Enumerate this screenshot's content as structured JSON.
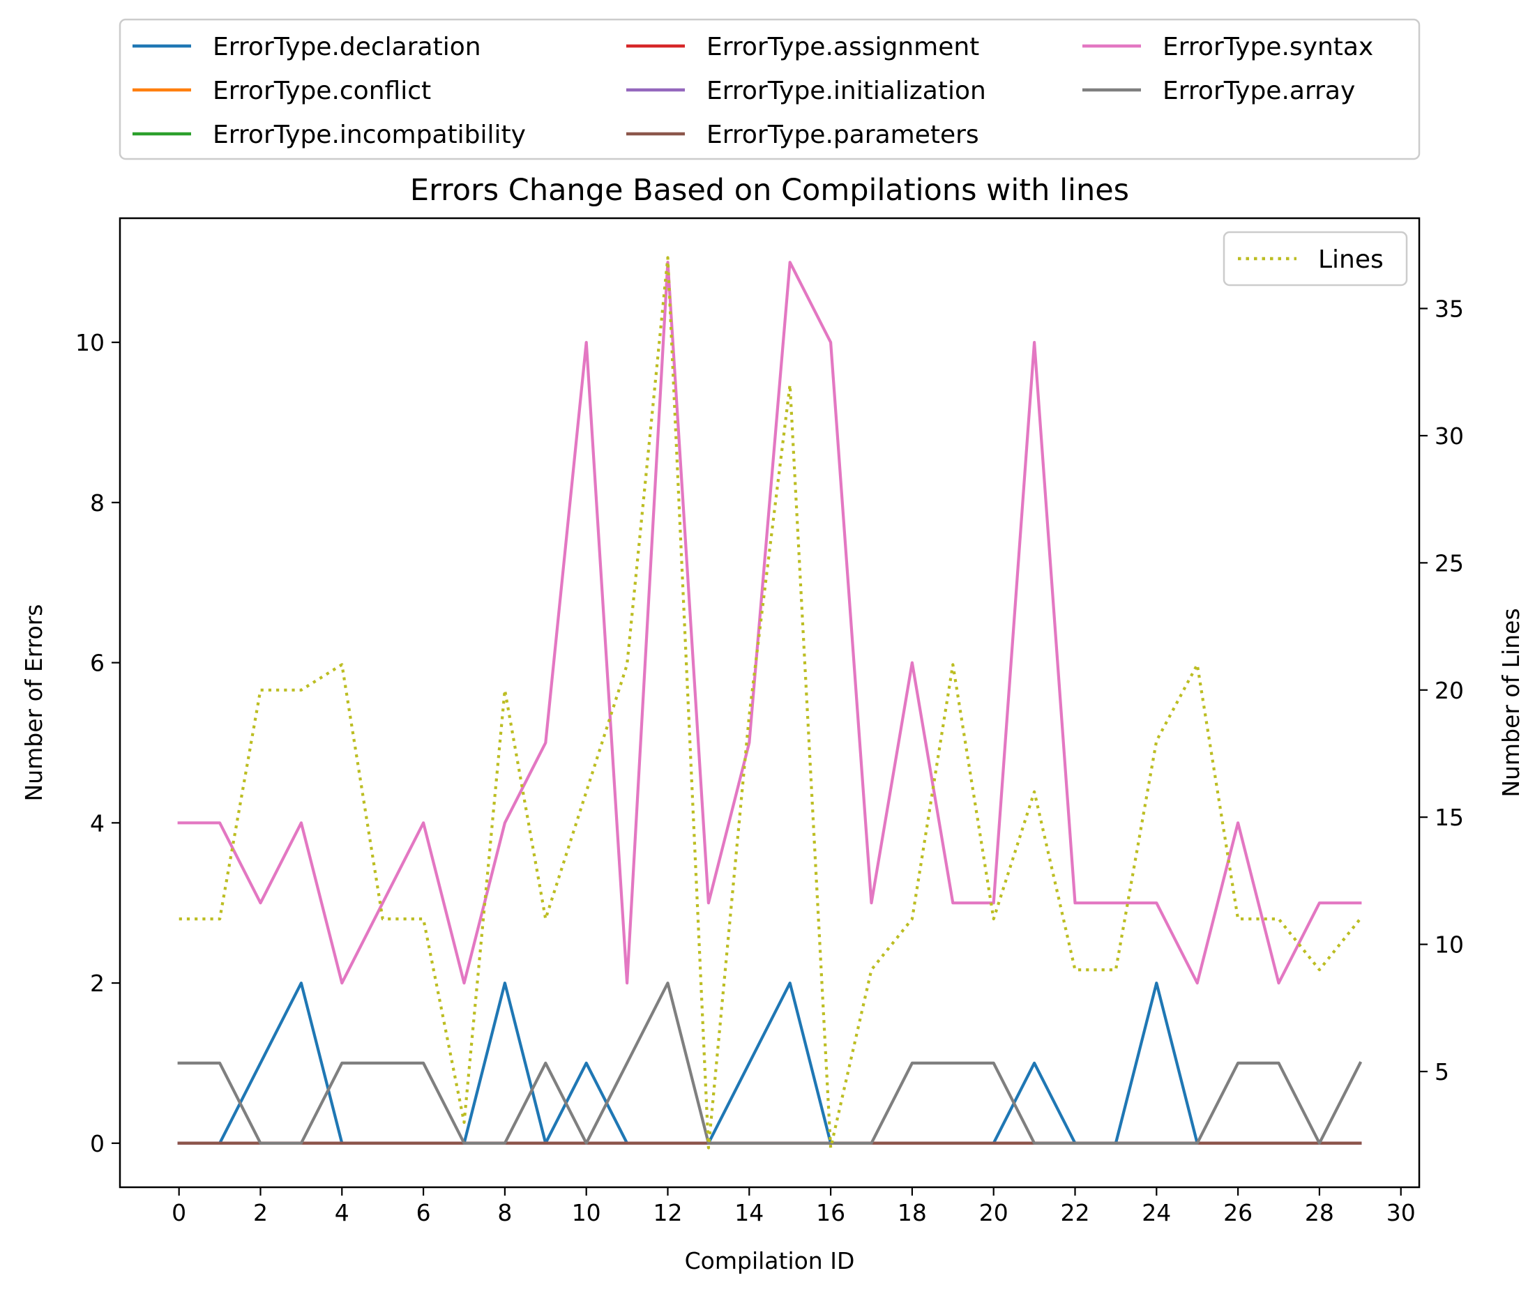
{
  "chart_data": {
    "type": "line",
    "title": "Errors Change Based on Compilations with lines",
    "xlabel": "Compilation ID",
    "ylabel": "Number of Errors",
    "y2label": "Number of Lines",
    "x": [
      0,
      1,
      2,
      3,
      4,
      5,
      6,
      7,
      8,
      9,
      10,
      11,
      12,
      13,
      14,
      15,
      16,
      17,
      18,
      19,
      20,
      21,
      22,
      23,
      24,
      25,
      26,
      27,
      28,
      29
    ],
    "xlim": [
      -1.45,
      30.45
    ],
    "ylim": [
      -0.55,
      11.55
    ],
    "y2lim": [
      0.45,
      38.55
    ],
    "xticks": [
      "0",
      "2",
      "4",
      "6",
      "8",
      "10",
      "12",
      "14",
      "16",
      "18",
      "20",
      "22",
      "24",
      "26",
      "28",
      "30"
    ],
    "yticks": [
      "0",
      "2",
      "4",
      "6",
      "8",
      "10"
    ],
    "y2ticks": [
      "5",
      "10",
      "15",
      "20",
      "25",
      "30",
      "35"
    ],
    "grid": false,
    "legend_position": "above-plot",
    "legend2_position": "top-right",
    "series": [
      {
        "name": "ErrorType.declaration",
        "color": "#1f77b4",
        "axis": "left",
        "style": "solid",
        "values": [
          0,
          0,
          1,
          2,
          0,
          0,
          0,
          0,
          2,
          0,
          1,
          0,
          0,
          0,
          1,
          2,
          0,
          0,
          0,
          0,
          0,
          1,
          0,
          0,
          2,
          0,
          0,
          0,
          0,
          0
        ]
      },
      {
        "name": "ErrorType.conflict",
        "color": "#ff7f0e",
        "axis": "left",
        "style": "solid",
        "values": [
          0,
          0,
          0,
          0,
          0,
          0,
          0,
          0,
          0,
          0,
          0,
          0,
          0,
          0,
          0,
          0,
          0,
          0,
          0,
          0,
          0,
          0,
          0,
          0,
          0,
          0,
          0,
          0,
          0,
          0
        ]
      },
      {
        "name": "ErrorType.incompatibility",
        "color": "#2ca02c",
        "axis": "left",
        "style": "solid",
        "values": [
          0,
          0,
          0,
          0,
          0,
          0,
          0,
          0,
          0,
          0,
          0,
          0,
          0,
          0,
          0,
          0,
          0,
          0,
          0,
          0,
          0,
          0,
          0,
          0,
          0,
          0,
          0,
          0,
          0,
          0
        ]
      },
      {
        "name": "ErrorType.assignment",
        "color": "#d62728",
        "axis": "left",
        "style": "solid",
        "values": [
          0,
          0,
          0,
          0,
          0,
          0,
          0,
          0,
          0,
          0,
          0,
          0,
          0,
          0,
          0,
          0,
          0,
          0,
          0,
          0,
          0,
          0,
          0,
          0,
          0,
          0,
          0,
          0,
          0,
          0
        ]
      },
      {
        "name": "ErrorType.initialization",
        "color": "#9467bd",
        "axis": "left",
        "style": "solid",
        "values": [
          0,
          0,
          0,
          0,
          0,
          0,
          0,
          0,
          0,
          0,
          0,
          0,
          0,
          0,
          0,
          0,
          0,
          0,
          0,
          0,
          0,
          0,
          0,
          0,
          0,
          0,
          0,
          0,
          0,
          0
        ]
      },
      {
        "name": "ErrorType.parameters",
        "color": "#8c564b",
        "axis": "left",
        "style": "solid",
        "values": [
          0,
          0,
          0,
          0,
          0,
          0,
          0,
          0,
          0,
          0,
          0,
          0,
          0,
          0,
          0,
          0,
          0,
          0,
          0,
          0,
          0,
          0,
          0,
          0,
          0,
          0,
          0,
          0,
          0,
          0
        ]
      },
      {
        "name": "ErrorType.syntax",
        "color": "#e377c2",
        "axis": "left",
        "style": "solid",
        "values": [
          4,
          4,
          3,
          4,
          2,
          3,
          4,
          2,
          4,
          5,
          10,
          2,
          11,
          3,
          5,
          11,
          10,
          3,
          6,
          3,
          3,
          10,
          3,
          3,
          3,
          2,
          4,
          2,
          3,
          3
        ]
      },
      {
        "name": "ErrorType.array",
        "color": "#7f7f7f",
        "axis": "left",
        "style": "solid",
        "values": [
          1,
          1,
          0,
          0,
          1,
          1,
          1,
          0,
          0,
          1,
          0,
          1,
          2,
          0,
          0,
          0,
          0,
          0,
          1,
          1,
          1,
          0,
          0,
          0,
          0,
          0,
          1,
          1,
          0,
          1
        ]
      },
      {
        "name": "Lines",
        "color": "#bcbd22",
        "axis": "right",
        "style": "dotted",
        "values": [
          11,
          11,
          20,
          20,
          21,
          11,
          11,
          3,
          20,
          11,
          16,
          21,
          37,
          2,
          19,
          32,
          2,
          9,
          11,
          21,
          11,
          16,
          9,
          9,
          18,
          21,
          11,
          11,
          9,
          11
        ]
      }
    ]
  }
}
